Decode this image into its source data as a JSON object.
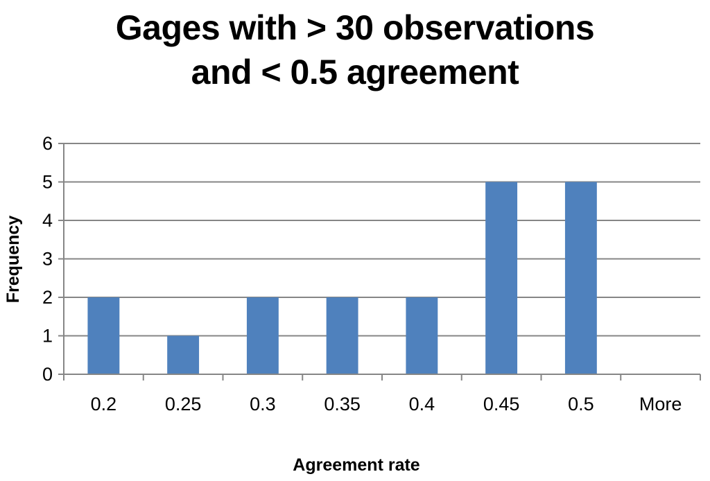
{
  "chart_data": {
    "type": "bar",
    "title_lines": [
      "Gages with > 30 observations",
      "and < 0.5 agreement"
    ],
    "xlabel": "Agreement rate",
    "ylabel": "Frequency",
    "categories": [
      "0.2",
      "0.25",
      "0.3",
      "0.35",
      "0.4",
      "0.45",
      "0.5",
      "More"
    ],
    "values": [
      2,
      1,
      2,
      2,
      2,
      5,
      5,
      0
    ],
    "ylim": [
      0,
      6
    ],
    "yticks": [
      "0",
      "1",
      "2",
      "3",
      "4",
      "5",
      "6"
    ],
    "grid": true,
    "legend": "none",
    "bar_color": "#4f81bd",
    "grid_color": "#868686"
  }
}
